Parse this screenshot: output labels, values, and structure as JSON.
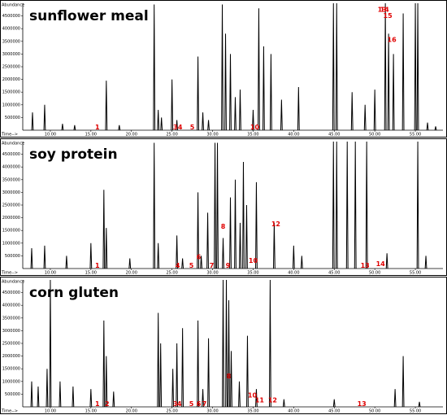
{
  "chart_data": [
    {
      "type": "line",
      "title": "sunflower meal",
      "ylabel": "Abundance",
      "xlabel": "Time-->",
      "color": "#000000",
      "xlim": [
        6.6,
        58.4
      ],
      "ylim": [
        0,
        5000000
      ],
      "xticks": [
        {
          "value": 10,
          "label": "10.00"
        },
        {
          "value": 15,
          "label": "15.00"
        },
        {
          "value": 20,
          "label": "20.00"
        },
        {
          "value": 25,
          "label": "25.00"
        },
        {
          "value": 30,
          "label": "30.00"
        },
        {
          "value": 35,
          "label": "35.00"
        },
        {
          "value": 40,
          "label": "40.00"
        },
        {
          "value": 45,
          "label": "45.00"
        },
        {
          "value": 50,
          "label": "50.00"
        },
        {
          "value": 55,
          "label": "55.00"
        }
      ],
      "yticks": [
        500000,
        1000000,
        1500000,
        2000000,
        2500000,
        3000000,
        3500000,
        4000000,
        4500000
      ],
      "x": [
        7.8,
        9.3,
        11.5,
        13.0,
        16.9,
        18.5,
        22.8,
        23.3,
        23.7,
        25.0,
        25.6,
        28.2,
        28.8,
        29.5,
        31.2,
        31.6,
        32.2,
        32.8,
        33.4,
        35.0,
        35.7,
        36.3,
        37.2,
        38.5,
        40.6,
        44.9,
        45.3,
        47.2,
        48.8,
        50.0,
        51.3,
        51.7,
        52.3,
        53.5,
        55.0,
        55.3,
        56.5,
        57.5
      ],
      "values": [
        700000,
        1000000,
        250000,
        200000,
        1950000,
        200000,
        4950000,
        800000,
        500000,
        2000000,
        400000,
        2900000,
        700000,
        400000,
        4950000,
        3800000,
        3000000,
        1300000,
        1600000,
        800000,
        4800000,
        3300000,
        3000000,
        1200000,
        1700000,
        5000000,
        5000000,
        1500000,
        1000000,
        1600000,
        5000000,
        3800000,
        3000000,
        4600000,
        5000000,
        5000000,
        300000,
        150000
      ],
      "annotations": [
        {
          "text": "1",
          "x": 15.8,
          "y": 120000
        },
        {
          "text": "3",
          "x": 25.4,
          "y": 120000
        },
        {
          "text": "4",
          "x": 26.0,
          "y": 120000
        },
        {
          "text": "5",
          "x": 27.5,
          "y": 120000
        },
        {
          "text": "10",
          "x": 35.2,
          "y": 120000
        },
        {
          "text": "13",
          "x": 50.9,
          "y": 4750000
        },
        {
          "text": "14",
          "x": 51.2,
          "y": 4750000
        },
        {
          "text": "15",
          "x": 51.6,
          "y": 4500000
        },
        {
          "text": "16",
          "x": 52.1,
          "y": 3550000
        }
      ]
    },
    {
      "type": "line",
      "title": "soy protein",
      "ylabel": "Abundance",
      "xlabel": "Time-->",
      "color": "#000000",
      "xlim": [
        6.6,
        58.4
      ],
      "ylim": [
        0,
        5000000
      ],
      "xticks": [
        {
          "value": 10,
          "label": "10.00"
        },
        {
          "value": 15,
          "label": "15.00"
        },
        {
          "value": 20,
          "label": "20.00"
        },
        {
          "value": 25,
          "label": "25.00"
        },
        {
          "value": 30,
          "label": "30.00"
        },
        {
          "value": 35,
          "label": "35.00"
        },
        {
          "value": 40,
          "label": "40.00"
        },
        {
          "value": 45,
          "label": "45.00"
        },
        {
          "value": 50,
          "label": "50.00"
        },
        {
          "value": 55,
          "label": "55.00"
        }
      ],
      "yticks": [
        500000,
        1000000,
        1500000,
        2000000,
        2500000,
        3000000,
        3500000,
        4000000,
        4500000
      ],
      "x": [
        7.7,
        9.3,
        12.0,
        15.0,
        16.6,
        16.9,
        19.8,
        22.8,
        23.3,
        25.6,
        26.3,
        28.2,
        28.6,
        29.4,
        30.3,
        30.6,
        31.3,
        32.2,
        32.8,
        33.4,
        33.8,
        34.2,
        35.4,
        37.6,
        40.0,
        41.0,
        44.9,
        45.3,
        46.6,
        47.6,
        49.0,
        51.5,
        55.3,
        56.3
      ],
      "values": [
        800000,
        900000,
        500000,
        1000000,
        3100000,
        1600000,
        400000,
        4950000,
        1000000,
        1300000,
        400000,
        3000000,
        500000,
        2200000,
        4950000,
        4950000,
        1200000,
        2800000,
        3500000,
        1800000,
        4200000,
        2500000,
        3400000,
        1800000,
        900000,
        500000,
        5000000,
        5000000,
        5000000,
        5000000,
        5000000,
        600000,
        5000000,
        500000
      ],
      "annotations": [
        {
          "text": "1",
          "x": 15.8,
          "y": 120000
        },
        {
          "text": "4",
          "x": 25.7,
          "y": 120000
        },
        {
          "text": "5",
          "x": 27.4,
          "y": 120000
        },
        {
          "text": "6",
          "x": 28.3,
          "y": 450000
        },
        {
          "text": "7",
          "x": 29.9,
          "y": 120000
        },
        {
          "text": "8",
          "x": 31.3,
          "y": 1650000
        },
        {
          "text": "9",
          "x": 31.9,
          "y": 120000
        },
        {
          "text": "10",
          "x": 35.0,
          "y": 300000
        },
        {
          "text": "12",
          "x": 37.8,
          "y": 1750000
        },
        {
          "text": "13",
          "x": 48.8,
          "y": 120000
        },
        {
          "text": "14",
          "x": 50.7,
          "y": 180000
        }
      ]
    },
    {
      "type": "line",
      "title": "corn gluten",
      "ylabel": "Abundance",
      "xlabel": "Time-->",
      "color": "#000000",
      "xlim": [
        6.6,
        58.4
      ],
      "ylim": [
        0,
        5000000
      ],
      "xticks": [
        {
          "value": 10,
          "label": "10.00"
        },
        {
          "value": 15,
          "label": "15.00"
        },
        {
          "value": 20,
          "label": "20.00"
        },
        {
          "value": 25,
          "label": "25.00"
        },
        {
          "value": 30,
          "label": "30.00"
        },
        {
          "value": 35,
          "label": "35.00"
        },
        {
          "value": 40,
          "label": "40.00"
        },
        {
          "value": 45,
          "label": "45.00"
        },
        {
          "value": 50,
          "label": "50.00"
        },
        {
          "value": 55,
          "label": "55.00"
        }
      ],
      "yticks": [
        500000,
        1000000,
        1500000,
        2000000,
        2500000,
        3000000,
        3500000,
        4000000,
        4500000
      ],
      "x": [
        7.7,
        8.5,
        9.6,
        10.0,
        11.2,
        12.8,
        15.0,
        16.6,
        16.9,
        17.8,
        23.3,
        23.6,
        25.1,
        25.6,
        26.3,
        28.2,
        28.8,
        29.5,
        31.3,
        31.7,
        32.0,
        32.3,
        33.3,
        34.3,
        35.4,
        37.1,
        38.8,
        45.0,
        52.5,
        53.5,
        55.5
      ],
      "values": [
        1000000,
        800000,
        1500000,
        5000000,
        1000000,
        800000,
        700000,
        3400000,
        2000000,
        600000,
        3700000,
        2500000,
        1500000,
        2500000,
        3100000,
        3400000,
        700000,
        2700000,
        5000000,
        5000000,
        4200000,
        2200000,
        1000000,
        2800000,
        700000,
        5000000,
        300000,
        300000,
        700000,
        2000000,
        200000
      ],
      "annotations": [
        {
          "text": "1",
          "x": 15.8,
          "y": 120000
        },
        {
          "text": "2",
          "x": 17.0,
          "y": 120000
        },
        {
          "text": "3",
          "x": 25.4,
          "y": 120000
        },
        {
          "text": "4",
          "x": 25.9,
          "y": 120000
        },
        {
          "text": "5",
          "x": 27.4,
          "y": 120000
        },
        {
          "text": "6",
          "x": 28.3,
          "y": 120000
        },
        {
          "text": "7",
          "x": 29.0,
          "y": 120000
        },
        {
          "text": "8",
          "x": 32.0,
          "y": 1200000
        },
        {
          "text": "10",
          "x": 34.9,
          "y": 450000
        },
        {
          "text": "11",
          "x": 35.8,
          "y": 250000
        },
        {
          "text": "12",
          "x": 37.4,
          "y": 250000
        },
        {
          "text": "13",
          "x": 48.4,
          "y": 120000
        }
      ]
    }
  ]
}
